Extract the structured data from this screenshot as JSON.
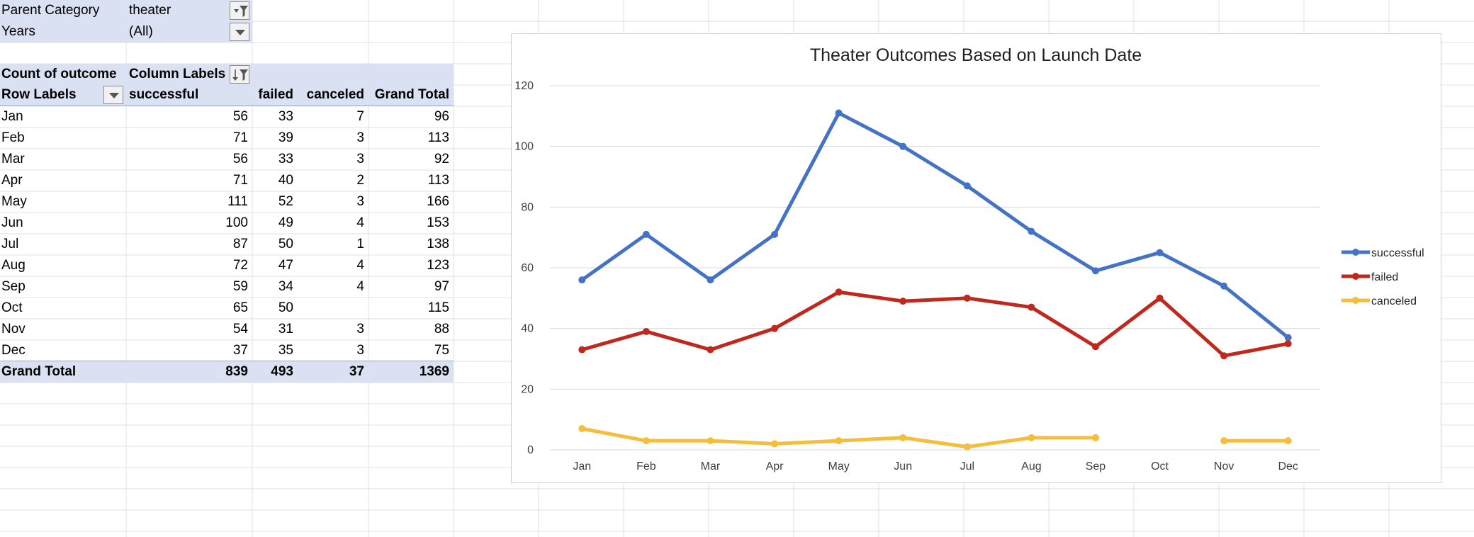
{
  "filters": {
    "parent_category_label": "Parent Category",
    "parent_category_value": "theater",
    "years_label": "Years",
    "years_value": "(All)"
  },
  "pivot": {
    "corner_label": "Count of outcome",
    "column_labels": "Column Labels",
    "row_labels": "Row Labels",
    "headers": [
      "successful",
      "failed",
      "canceled",
      "Grand Total"
    ],
    "rows": [
      {
        "label": "Jan",
        "values": [
          "56",
          "33",
          "7",
          "96"
        ]
      },
      {
        "label": "Feb",
        "values": [
          "71",
          "39",
          "3",
          "113"
        ]
      },
      {
        "label": "Mar",
        "values": [
          "56",
          "33",
          "3",
          "92"
        ]
      },
      {
        "label": "Apr",
        "values": [
          "71",
          "40",
          "2",
          "113"
        ]
      },
      {
        "label": "May",
        "values": [
          "111",
          "52",
          "3",
          "166"
        ]
      },
      {
        "label": "Jun",
        "values": [
          "100",
          "49",
          "4",
          "153"
        ]
      },
      {
        "label": "Jul",
        "values": [
          "87",
          "50",
          "1",
          "138"
        ]
      },
      {
        "label": "Aug",
        "values": [
          "72",
          "47",
          "4",
          "123"
        ]
      },
      {
        "label": "Sep",
        "values": [
          "59",
          "34",
          "4",
          "97"
        ]
      },
      {
        "label": "Oct",
        "values": [
          "65",
          "50",
          "",
          "115"
        ]
      },
      {
        "label": "Nov",
        "values": [
          "54",
          "31",
          "3",
          "88"
        ]
      },
      {
        "label": "Dec",
        "values": [
          "37",
          "35",
          "3",
          "75"
        ]
      }
    ],
    "total": {
      "label": "Grand Total",
      "values": [
        "839",
        "493",
        "37",
        "1369"
      ]
    }
  },
  "chart_data": {
    "type": "line",
    "title": "Theater Outcomes Based on Launch Date",
    "xlabel": "",
    "ylabel": "",
    "categories": [
      "Jan",
      "Feb",
      "Mar",
      "Apr",
      "May",
      "Jun",
      "Jul",
      "Aug",
      "Sep",
      "Oct",
      "Nov",
      "Dec"
    ],
    "ylim": [
      0,
      120
    ],
    "yticks": [
      0,
      20,
      40,
      60,
      80,
      100,
      120
    ],
    "grid": true,
    "legend": "right",
    "series": [
      {
        "name": "successful",
        "color": "#4472c4",
        "values": [
          56,
          71,
          56,
          71,
          111,
          100,
          87,
          72,
          59,
          65,
          54,
          37
        ]
      },
      {
        "name": "failed",
        "color": "#c0281d",
        "values": [
          33,
          39,
          33,
          40,
          52,
          49,
          50,
          47,
          34,
          50,
          31,
          35
        ]
      },
      {
        "name": "canceled",
        "color": "#f4bd3b",
        "values": [
          7,
          3,
          3,
          2,
          3,
          4,
          1,
          4,
          4,
          null,
          3,
          3
        ]
      }
    ]
  }
}
